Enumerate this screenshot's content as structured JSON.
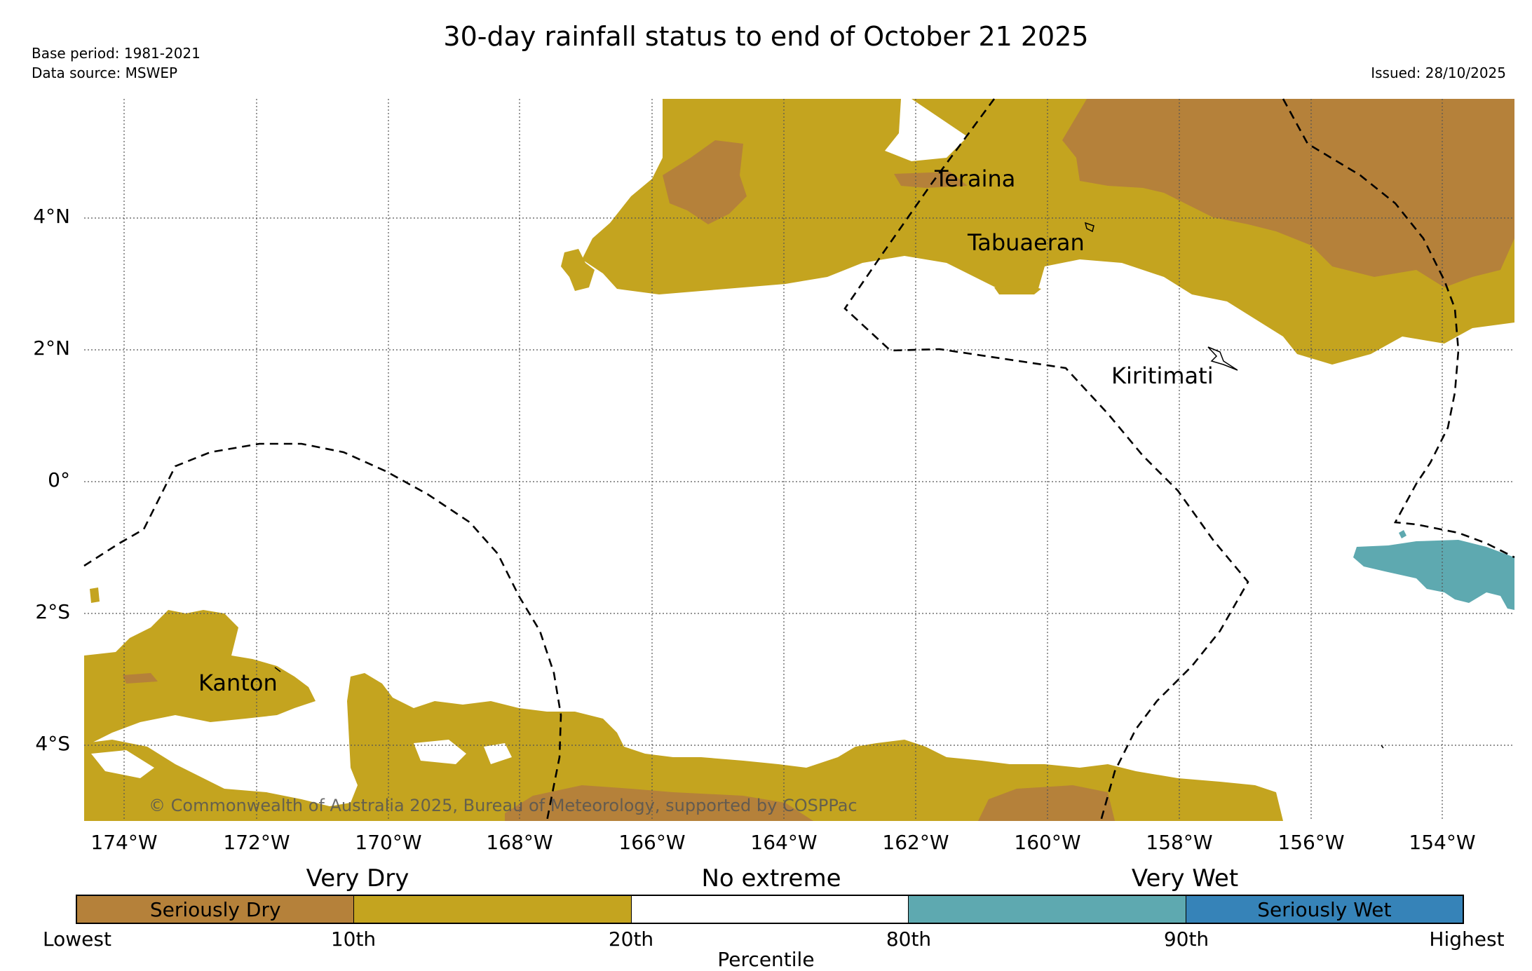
{
  "header": {
    "title": "30-day rainfall status to end of October 21 2025",
    "base_period": "Base period: 1981-2021",
    "data_source": "Data source: MSWEP",
    "issued": "Issued: 28/10/2025"
  },
  "map": {
    "lon_labels": [
      "174°W",
      "172°W",
      "170°W",
      "168°W",
      "166°W",
      "164°W",
      "162°W",
      "160°W",
      "158°W",
      "156°W",
      "154°W"
    ],
    "lat_labels": [
      "4°N",
      "2°N",
      "0°",
      "2°S",
      "4°S"
    ],
    "places": [
      "Teraina",
      "Tabuaeran",
      "Kiritimati",
      "Kanton"
    ],
    "copyright": "© Commonwealth of Australia 2025, Bureau of Meteorology, supported by COSPPac",
    "colors": {
      "seriously_dry": "#b5813a",
      "very_dry": "#c4a41f",
      "no_extreme": "#ffffff",
      "very_wet": "#5ea9b0",
      "seriously_wet": "#3683b8"
    }
  },
  "legend": {
    "groups": [
      "Very Dry",
      "No extreme",
      "Very Wet"
    ],
    "cells": [
      "Seriously Dry",
      "",
      "",
      "",
      "Seriously Wet"
    ],
    "ticks": [
      "Lowest",
      "10th",
      "20th",
      "80th",
      "90th",
      "Highest"
    ],
    "axis_label": "Percentile"
  }
}
